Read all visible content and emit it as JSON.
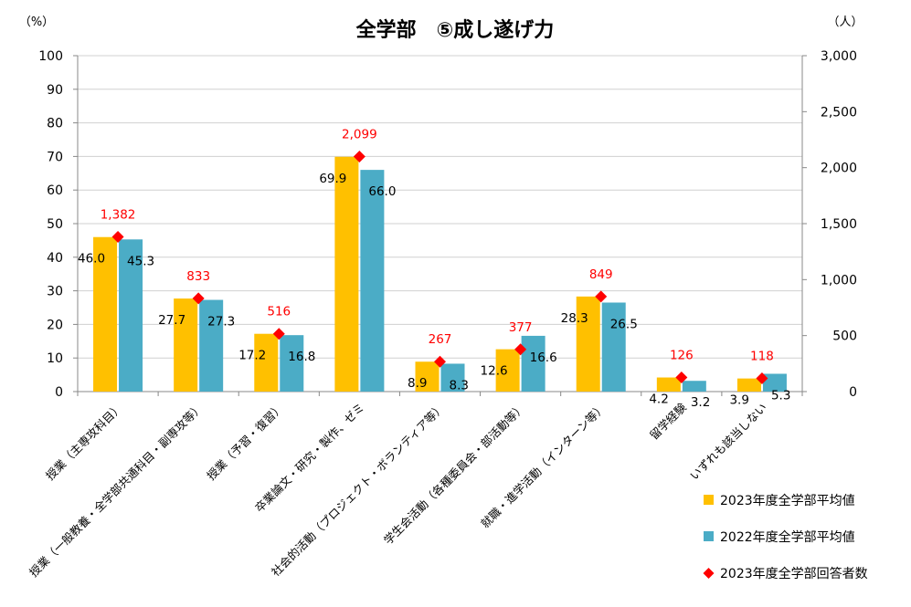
{
  "chart_data": {
    "type": "bar",
    "title": "全学部　⑤成し遂げ力",
    "ylabel_left": "（%）",
    "ylabel_right": "（人）",
    "ylim_left": [
      0,
      100
    ],
    "ylim_right": [
      0,
      3000
    ],
    "yticks_left": [
      "0",
      "10",
      "20",
      "30",
      "40",
      "50",
      "60",
      "70",
      "80",
      "90",
      "100"
    ],
    "yticks_right": [
      "0",
      "500",
      "1,000",
      "1,500",
      "2,000",
      "2,500",
      "3,000"
    ],
    "grid": true,
    "legend_position": "bottom-right",
    "categories": [
      "授業（主専攻科目）",
      "授業（一般教養・全学部共通科目・副専攻等）",
      "授業（予習・復習）",
      "卒業論文・研究・製作、ゼミ",
      "社会的活動（プロジェクト・ボランティア等）",
      "学生会活動（各種委員会・部活動等）",
      "就職・進学活動（インターン等）",
      "留学経験",
      "いずれも該当しない"
    ],
    "series": [
      {
        "name": "2023年度全学部平均値",
        "type": "bar",
        "axis": "left",
        "color": "#FFC000",
        "values": [
          46.0,
          27.7,
          17.2,
          69.9,
          8.9,
          12.6,
          28.3,
          4.2,
          3.9
        ],
        "labels": [
          "46.0",
          "27.7",
          "17.2",
          "69.9",
          "8.9",
          "12.6",
          "28.3",
          "4.2",
          "3.9"
        ]
      },
      {
        "name": "2022年度全学部平均値",
        "type": "bar",
        "axis": "left",
        "color": "#4BACC6",
        "values": [
          45.3,
          27.3,
          16.8,
          66.0,
          8.3,
          16.6,
          26.5,
          3.2,
          5.3
        ],
        "labels": [
          "45.3",
          "27.3",
          "16.8",
          "66.0",
          "8.3",
          "16.6",
          "26.5",
          "3.2",
          "5.3"
        ]
      },
      {
        "name": "2023年度全学部回答者数",
        "type": "marker",
        "axis": "right",
        "color": "#FF0000",
        "values": [
          1382,
          833,
          516,
          2099,
          267,
          377,
          849,
          126,
          118
        ],
        "labels": [
          "1,382",
          "833",
          "516",
          "2,099",
          "267",
          "377",
          "849",
          "126",
          "118"
        ]
      }
    ]
  }
}
